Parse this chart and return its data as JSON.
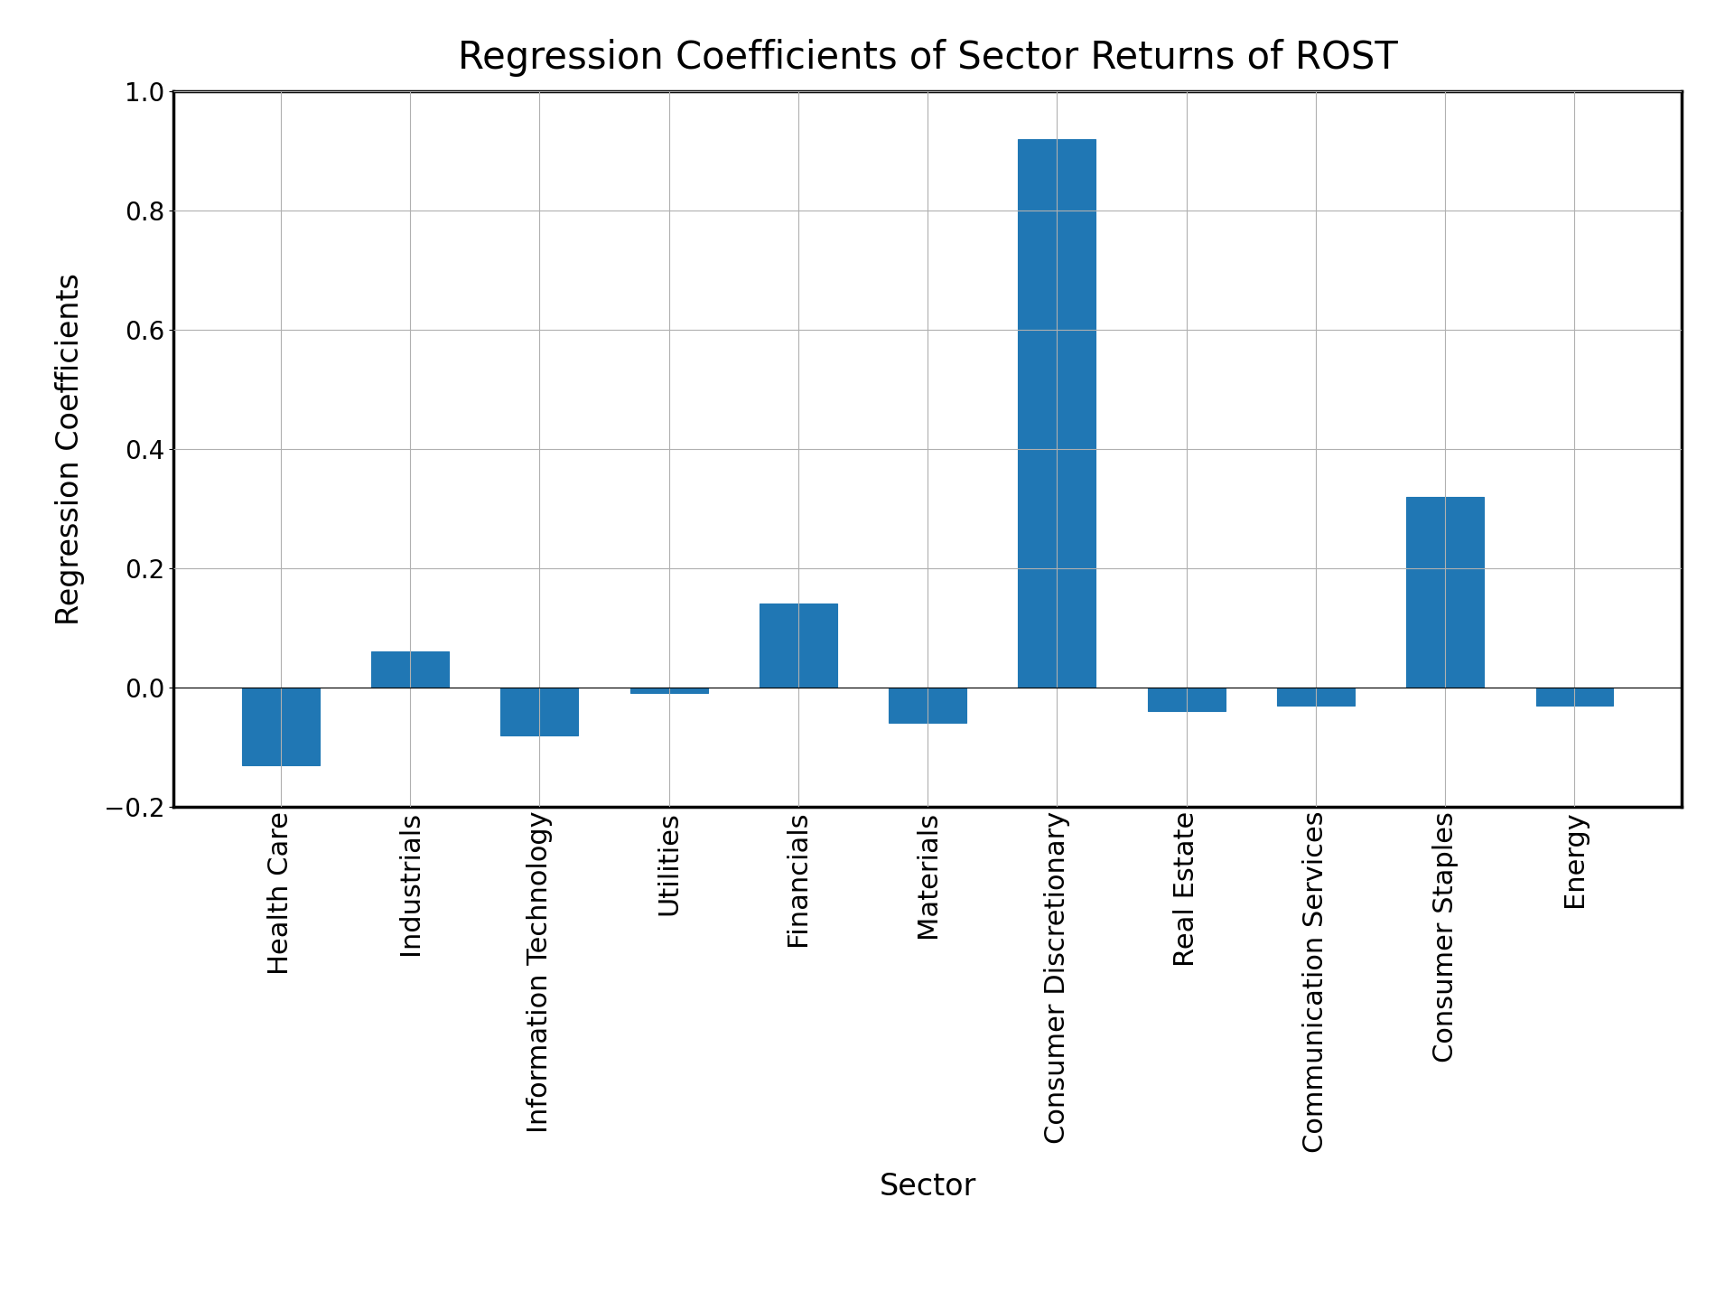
{
  "title": "Regression Coefficients of Sector Returns of ROST",
  "xlabel": "Sector",
  "ylabel": "Regression Coefficients",
  "categories": [
    "Health Care",
    "Industrials",
    "Information Technology",
    "Utilities",
    "Financials",
    "Materials",
    "Consumer Discretionary",
    "Real Estate",
    "Communication Services",
    "Consumer Staples",
    "Energy"
  ],
  "values": [
    -0.13,
    0.06,
    -0.08,
    -0.01,
    0.14,
    -0.06,
    0.92,
    -0.04,
    -0.03,
    0.32,
    -0.03
  ],
  "bar_color": "#2077b4",
  "bar_edgecolor": "#2077b4",
  "background_color": "#ffffff",
  "grid_color": "#b0b0b0",
  "title_fontsize": 30,
  "label_fontsize": 24,
  "tick_fontsize": 20,
  "xtick_fontsize": 22,
  "ylim": [
    -0.2,
    1.0
  ],
  "yticks": [
    -0.2,
    0.0,
    0.2,
    0.4,
    0.6,
    0.8,
    1.0
  ],
  "figsize": [
    19.2,
    14.4
  ],
  "dpi": 100,
  "spine_linewidth": 2.5
}
